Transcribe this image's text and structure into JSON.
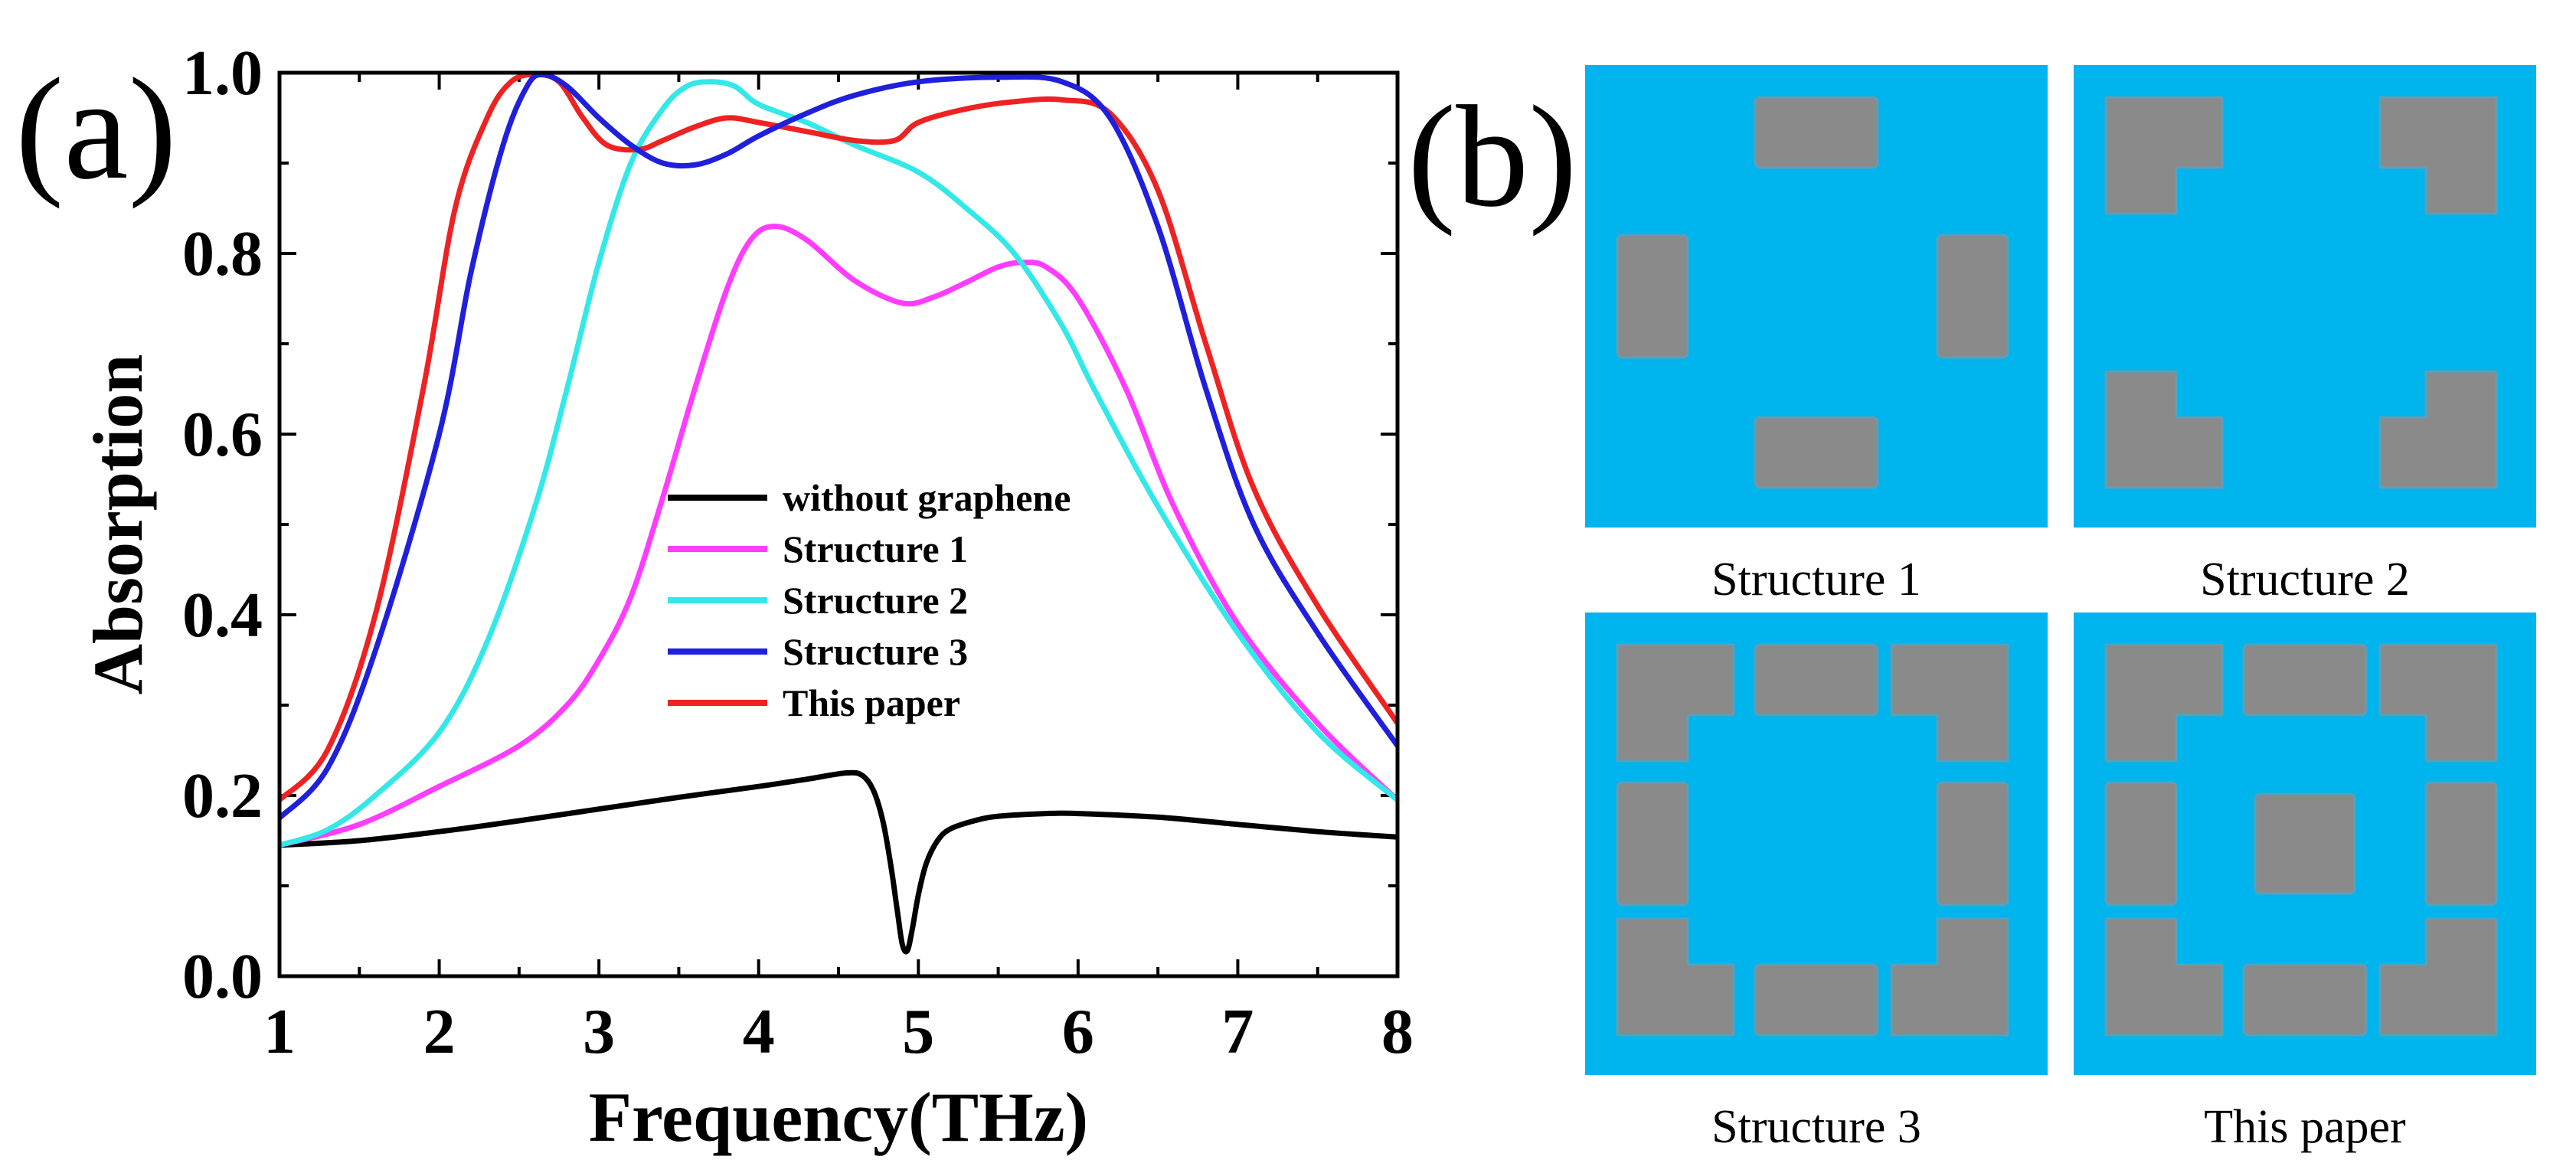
{
  "panel_a_label": "(a)",
  "panel_b_label": "(b)",
  "chart_data": {
    "type": "line",
    "xlabel": "Frequency(THz)",
    "ylabel": "Absorption",
    "xlim": [
      1,
      8
    ],
    "ylim": [
      0,
      1
    ],
    "x_ticks": [
      "1",
      "2",
      "3",
      "4",
      "5",
      "6",
      "7",
      "8"
    ],
    "y_ticks": [
      "0.0",
      "0.2",
      "0.4",
      "0.6",
      "0.8",
      "1.0"
    ],
    "legend_position": "center-right",
    "series": [
      {
        "name": "without graphene",
        "color": "#000000",
        "points": [
          [
            1,
            0.145
          ],
          [
            1.5,
            0.15
          ],
          [
            2,
            0.16
          ],
          [
            2.5,
            0.172
          ],
          [
            3,
            0.185
          ],
          [
            3.5,
            0.198
          ],
          [
            4,
            0.21
          ],
          [
            4.3,
            0.218
          ],
          [
            4.55,
            0.225
          ],
          [
            4.65,
            0.222
          ],
          [
            4.72,
            0.205
          ],
          [
            4.78,
            0.17
          ],
          [
            4.83,
            0.12
          ],
          [
            4.87,
            0.07
          ],
          [
            4.9,
            0.035
          ],
          [
            4.93,
            0.028
          ],
          [
            4.96,
            0.05
          ],
          [
            5.0,
            0.09
          ],
          [
            5.05,
            0.125
          ],
          [
            5.12,
            0.15
          ],
          [
            5.2,
            0.163
          ],
          [
            5.35,
            0.172
          ],
          [
            5.5,
            0.177
          ],
          [
            5.8,
            0.18
          ],
          [
            6,
            0.18
          ],
          [
            6.5,
            0.176
          ],
          [
            7,
            0.168
          ],
          [
            7.5,
            0.16
          ],
          [
            8,
            0.154
          ]
        ]
      },
      {
        "name": "Structure 1",
        "color": "#ff3cff",
        "points": [
          [
            1,
            0.145
          ],
          [
            1.5,
            0.168
          ],
          [
            2,
            0.21
          ],
          [
            2.5,
            0.255
          ],
          [
            2.8,
            0.3
          ],
          [
            3,
            0.35
          ],
          [
            3.2,
            0.42
          ],
          [
            3.4,
            0.53
          ],
          [
            3.6,
            0.65
          ],
          [
            3.8,
            0.76
          ],
          [
            3.95,
            0.815
          ],
          [
            4.1,
            0.83
          ],
          [
            4.3,
            0.815
          ],
          [
            4.6,
            0.77
          ],
          [
            4.9,
            0.745
          ],
          [
            5.1,
            0.752
          ],
          [
            5.3,
            0.768
          ],
          [
            5.5,
            0.785
          ],
          [
            5.65,
            0.79
          ],
          [
            5.8,
            0.785
          ],
          [
            6,
            0.75
          ],
          [
            6.3,
            0.65
          ],
          [
            6.6,
            0.52
          ],
          [
            7,
            0.39
          ],
          [
            7.5,
            0.28
          ],
          [
            8,
            0.195
          ]
        ]
      },
      {
        "name": "Structure 2",
        "color": "#33e8e8",
        "points": [
          [
            1,
            0.145
          ],
          [
            1.3,
            0.162
          ],
          [
            1.6,
            0.2
          ],
          [
            2,
            0.27
          ],
          [
            2.3,
            0.37
          ],
          [
            2.6,
            0.52
          ],
          [
            2.8,
            0.65
          ],
          [
            3,
            0.79
          ],
          [
            3.2,
            0.9
          ],
          [
            3.4,
            0.96
          ],
          [
            3.55,
            0.985
          ],
          [
            3.7,
            0.99
          ],
          [
            3.85,
            0.985
          ],
          [
            4,
            0.965
          ],
          [
            4.3,
            0.945
          ],
          [
            4.6,
            0.92
          ],
          [
            5,
            0.89
          ],
          [
            5.3,
            0.85
          ],
          [
            5.6,
            0.8
          ],
          [
            5.9,
            0.72
          ],
          [
            6.1,
            0.65
          ],
          [
            6.5,
            0.52
          ],
          [
            7,
            0.38
          ],
          [
            7.5,
            0.27
          ],
          [
            8,
            0.195
          ]
        ]
      },
      {
        "name": "Structure 3",
        "color": "#1f1fdc",
        "points": [
          [
            1,
            0.175
          ],
          [
            1.3,
            0.23
          ],
          [
            1.6,
            0.36
          ],
          [
            2,
            0.6
          ],
          [
            2.2,
            0.78
          ],
          [
            2.4,
            0.92
          ],
          [
            2.55,
            0.985
          ],
          [
            2.65,
            0.998
          ],
          [
            2.8,
            0.985
          ],
          [
            3,
            0.95
          ],
          [
            3.2,
            0.92
          ],
          [
            3.4,
            0.9
          ],
          [
            3.6,
            0.898
          ],
          [
            3.8,
            0.91
          ],
          [
            4,
            0.93
          ],
          [
            4.3,
            0.955
          ],
          [
            4.6,
            0.975
          ],
          [
            5,
            0.99
          ],
          [
            5.5,
            0.995
          ],
          [
            5.9,
            0.99
          ],
          [
            6.2,
            0.95
          ],
          [
            6.5,
            0.83
          ],
          [
            6.8,
            0.65
          ],
          [
            7.1,
            0.5
          ],
          [
            7.5,
            0.38
          ],
          [
            8,
            0.255
          ]
        ]
      },
      {
        "name": "This paper",
        "color": "#ee2222",
        "points": [
          [
            1,
            0.195
          ],
          [
            1.3,
            0.25
          ],
          [
            1.6,
            0.4
          ],
          [
            1.9,
            0.65
          ],
          [
            2.1,
            0.85
          ],
          [
            2.3,
            0.95
          ],
          [
            2.45,
            0.99
          ],
          [
            2.6,
            0.998
          ],
          [
            2.75,
            0.99
          ],
          [
            2.9,
            0.95
          ],
          [
            3.05,
            0.92
          ],
          [
            3.25,
            0.915
          ],
          [
            3.4,
            0.925
          ],
          [
            3.6,
            0.94
          ],
          [
            3.8,
            0.95
          ],
          [
            4,
            0.945
          ],
          [
            4.3,
            0.935
          ],
          [
            4.6,
            0.925
          ],
          [
            4.85,
            0.925
          ],
          [
            5,
            0.945
          ],
          [
            5.3,
            0.96
          ],
          [
            5.6,
            0.968
          ],
          [
            5.9,
            0.97
          ],
          [
            6.2,
            0.955
          ],
          [
            6.5,
            0.87
          ],
          [
            6.8,
            0.7
          ],
          [
            7.1,
            0.54
          ],
          [
            7.5,
            0.41
          ],
          [
            8,
            0.28
          ]
        ]
      }
    ]
  },
  "structures": [
    {
      "caption": "Structure 1",
      "variant": "s1"
    },
    {
      "caption": "Structure 2",
      "variant": "s2"
    },
    {
      "caption": "Structure 3",
      "variant": "s3"
    },
    {
      "caption": "This paper",
      "variant": "s4"
    }
  ],
  "colors": {
    "substrate": "#00b4ee",
    "graphene": "#8a8a8a"
  }
}
